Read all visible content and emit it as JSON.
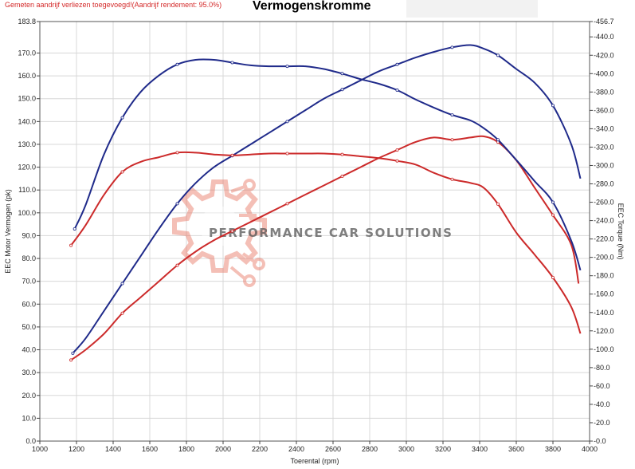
{
  "header": {
    "notice": "Gemeten aandrijf verliezen toegevoegd!(Aandrijf rendement: 95.0%)",
    "title": "Vermogenskromme"
  },
  "watermark": {
    "text": "PERFORMANCE CAR SOLUTIONS",
    "icon": "gear-circuit-logo-icon"
  },
  "chart_data": {
    "type": "line",
    "title": "Vermogenskromme",
    "xlabel": "Toerental (rpm)",
    "ylabel": "EEC Motor Vermogen (pk)",
    "y2label": "EEC Torque (Nm)",
    "xlim": [
      1000,
      4000
    ],
    "ylim": [
      0,
      183.8
    ],
    "y2lim": [
      0,
      456.7
    ],
    "x_ticks": [
      1000,
      1200,
      1400,
      1600,
      1800,
      2000,
      2200,
      2400,
      2600,
      2800,
      3000,
      3200,
      3400,
      3600,
      3800,
      4000
    ],
    "y_ticks": [
      "0.0",
      "10.0",
      "20.0",
      "30.0",
      "40.0",
      "50.0",
      "60.0",
      "70.0",
      "80.0",
      "90.0",
      "100.0",
      "110.0",
      "120.0",
      "130.0",
      "140.0",
      "150.0",
      "160.0",
      "170.0",
      "183.8"
    ],
    "y2_ticks": [
      "0.0",
      "20.0",
      "40.0",
      "60.0",
      "80.0",
      "100.0",
      "120.0",
      "140.0",
      "160.0",
      "180.0",
      "200.0",
      "220.0",
      "240.0",
      "260.0",
      "280.0",
      "300.0",
      "320.0",
      "340.0",
      "360.0",
      "380.0",
      "400.0",
      "420.0",
      "440.0",
      "456.7"
    ],
    "grid": true,
    "legend": "none",
    "series": [
      {
        "id": "power-tuned",
        "axis": "left",
        "color": "#1f2a8a",
        "x": [
          1180,
          1250,
          1350,
          1450,
          1550,
          1650,
          1750,
          1850,
          1950,
          2050,
          2150,
          2250,
          2350,
          2450,
          2550,
          2650,
          2750,
          2850,
          2950,
          3050,
          3150,
          3250,
          3350,
          3420,
          3500,
          3600,
          3700,
          3800,
          3900,
          3950
        ],
        "y": [
          38.5,
          45,
          57,
          69,
          81,
          93,
          104,
          113,
          120,
          125,
          130,
          135,
          140,
          145,
          150,
          154,
          158,
          162,
          165,
          168,
          170.5,
          172.5,
          173.5,
          172,
          169,
          163,
          157,
          147,
          130,
          115
        ]
      },
      {
        "id": "power-stock",
        "axis": "left",
        "color": "#cc2a2a",
        "x": [
          1170,
          1250,
          1350,
          1450,
          1550,
          1650,
          1750,
          1850,
          1950,
          2050,
          2150,
          2250,
          2350,
          2450,
          2550,
          2650,
          2750,
          2850,
          2950,
          3050,
          3150,
          3250,
          3350,
          3420,
          3500,
          3600,
          3700,
          3800,
          3900,
          3940
        ],
        "y": [
          35.5,
          40,
          47,
          56,
          63,
          70,
          77,
          83,
          88,
          92,
          96,
          100,
          104,
          108,
          112,
          116,
          120,
          124,
          127.5,
          131,
          133,
          132,
          133,
          133.5,
          131,
          123,
          111,
          99,
          86,
          69
        ]
      },
      {
        "id": "torque-tuned",
        "axis": "right",
        "color": "#1f2a8a",
        "x": [
          1190,
          1250,
          1350,
          1450,
          1550,
          1650,
          1750,
          1850,
          1950,
          2050,
          2150,
          2250,
          2350,
          2450,
          2550,
          2650,
          2750,
          2850,
          2950,
          3050,
          3150,
          3250,
          3350,
          3420,
          3500,
          3600,
          3700,
          3800,
          3900,
          3950
        ],
        "y": [
          231,
          257,
          312,
          352,
          380,
          398,
          410,
          415,
          415,
          412,
          409,
          408,
          408,
          408,
          405,
          400,
          394,
          389,
          382,
          372,
          363,
          355,
          349,
          341,
          328,
          306,
          283,
          260,
          218,
          186
        ]
      },
      {
        "id": "torque-stock",
        "axis": "right",
        "color": "#cc2a2a",
        "x": [
          1170,
          1250,
          1350,
          1450,
          1550,
          1650,
          1750,
          1850,
          1950,
          2050,
          2150,
          2250,
          2350,
          2450,
          2550,
          2650,
          2750,
          2850,
          2950,
          3050,
          3150,
          3250,
          3350,
          3420,
          3500,
          3600,
          3700,
          3800,
          3900,
          3950
        ],
        "y": [
          213,
          235,
          268,
          293,
          304,
          309,
          314,
          314,
          312,
          311,
          312,
          313,
          313,
          313,
          313,
          312,
          310,
          308,
          305,
          301,
          292,
          285,
          281,
          276,
          258,
          227,
          203,
          178,
          146,
          117
        ]
      }
    ]
  }
}
